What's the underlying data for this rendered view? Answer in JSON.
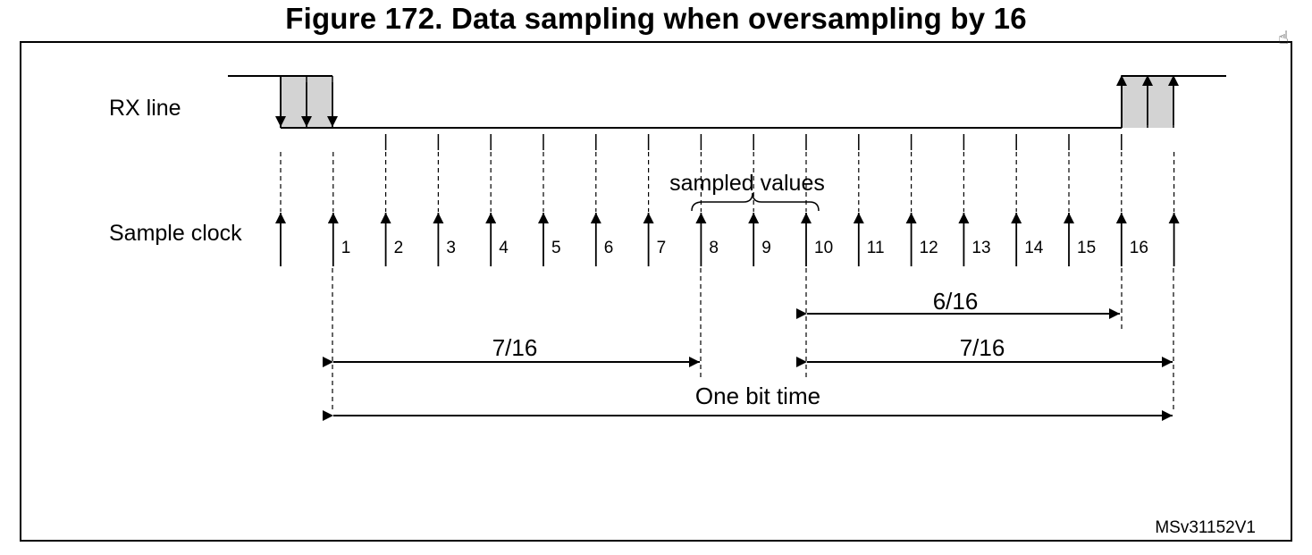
{
  "title": "Figure 172. Data sampling when oversampling by 16",
  "labels": {
    "rx_line": "RX line",
    "sample_clock": "Sample clock",
    "sampled_values": "sampled values",
    "one_bit_time": "One bit time",
    "code": "MSv31152V1"
  },
  "sample_numbers": [
    "1",
    "2",
    "3",
    "4",
    "5",
    "6",
    "7",
    "8",
    "9",
    "10",
    "11",
    "12",
    "13",
    "14",
    "15",
    "16"
  ],
  "dimensions": {
    "first_7_16": "7/16",
    "second_7_16": "7/16",
    "six_16": "6/16"
  },
  "colors": {
    "line": "#000000",
    "shade": "#d3d3d3"
  },
  "icons": {
    "cursor": "hand-cursor-icon"
  }
}
